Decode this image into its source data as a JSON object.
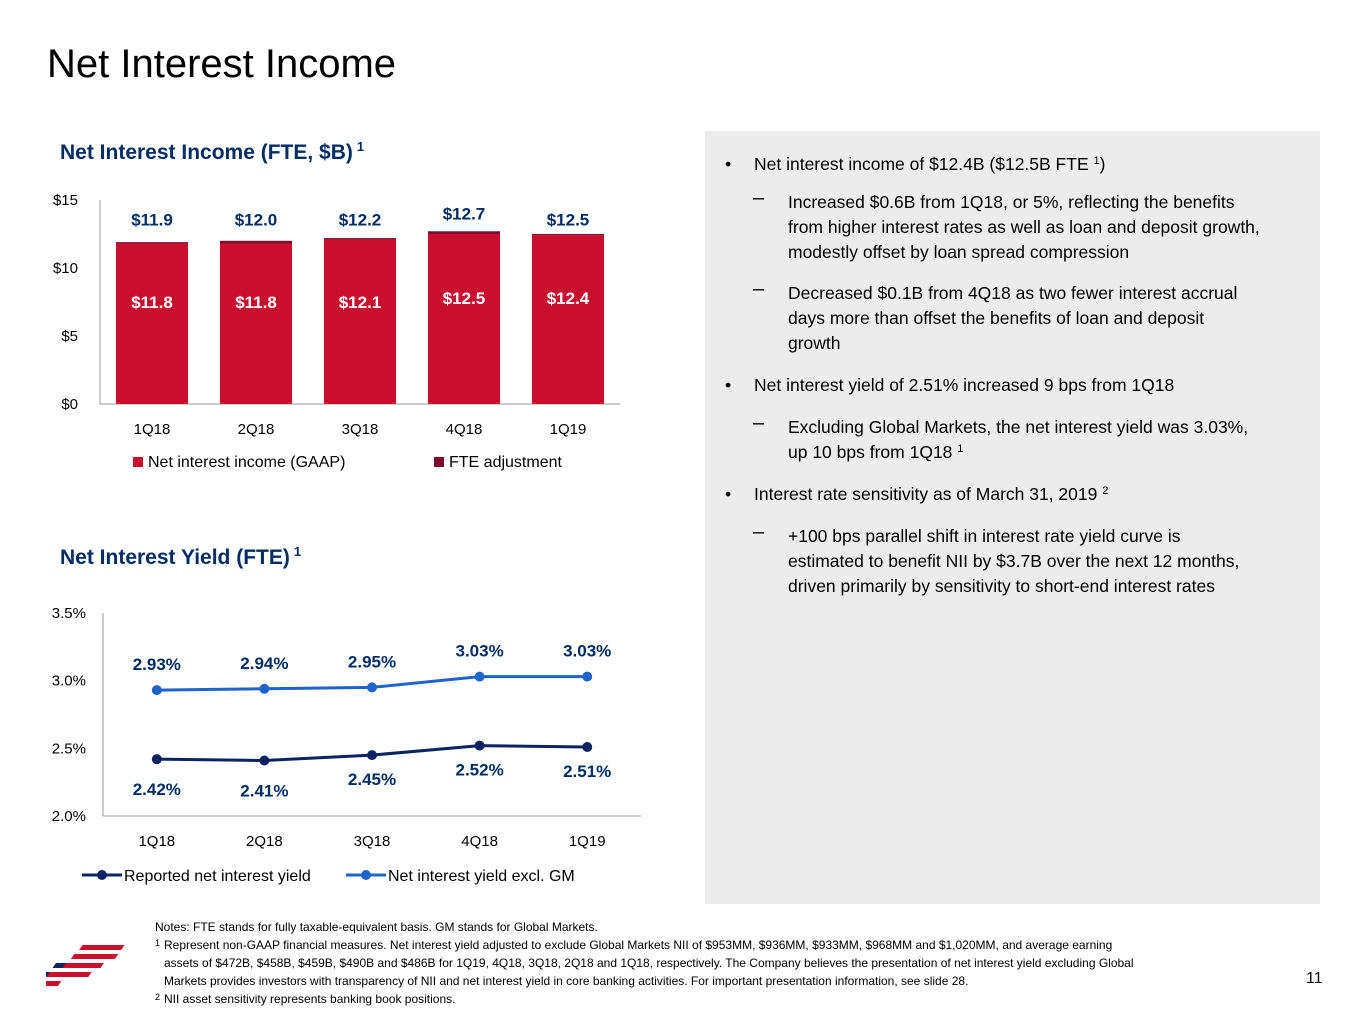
{
  "page": {
    "title": "Net Interest Income",
    "page_number": "11"
  },
  "colors": {
    "bar_red": "#c8102e",
    "fte_dark_red": "#7a0c2e",
    "navy": "#0b2461",
    "blue": "#1f64c8",
    "panel_gray": "#ececec"
  },
  "nii_chart": {
    "title": "Net Interest Income (FTE, $B)",
    "title_sup": "1",
    "legend": [
      "Net interest income (GAAP)",
      "FTE adjustment"
    ]
  },
  "yield_chart": {
    "title": "Net Interest Yield (FTE)",
    "title_sup": "1",
    "legend": [
      "Reported net interest yield",
      "Net interest yield excl. GM"
    ]
  },
  "chart_data": [
    {
      "type": "bar",
      "title": "Net Interest Income (FTE, $B)",
      "categories": [
        "1Q18",
        "2Q18",
        "3Q18",
        "4Q18",
        "1Q19"
      ],
      "y_ticks": [
        "$0",
        "$5",
        "$10",
        "$15"
      ],
      "ylim": [
        0,
        15
      ],
      "stacked": true,
      "series": [
        {
          "name": "Net interest income (GAAP)",
          "values": [
            11.8,
            11.8,
            12.1,
            12.5,
            12.4
          ],
          "labels": [
            "$11.8",
            "$11.8",
            "$12.1",
            "$12.5",
            "$12.4"
          ]
        },
        {
          "name": "FTE adjustment",
          "values": [
            0.1,
            0.2,
            0.1,
            0.2,
            0.1
          ]
        }
      ],
      "total_labels": [
        "$11.9",
        "$12.0",
        "$12.2",
        "$12.7",
        "$12.5"
      ],
      "totals": [
        11.9,
        12.0,
        12.2,
        12.7,
        12.5
      ],
      "legend_position": "bottom"
    },
    {
      "type": "line",
      "title": "Net Interest Yield (FTE)",
      "categories": [
        "1Q18",
        "2Q18",
        "3Q18",
        "4Q18",
        "1Q19"
      ],
      "y_ticks": [
        "2.0%",
        "2.5%",
        "3.0%",
        "3.5%"
      ],
      "ylim": [
        2.0,
        3.5
      ],
      "series": [
        {
          "name": "Reported net interest yield",
          "values": [
            2.42,
            2.41,
            2.45,
            2.52,
            2.51
          ],
          "labels": [
            "2.42%",
            "2.41%",
            "2.45%",
            "2.52%",
            "2.51%"
          ]
        },
        {
          "name": "Net interest yield excl. GM",
          "values": [
            2.93,
            2.94,
            2.95,
            3.03,
            3.03
          ],
          "labels": [
            "2.93%",
            "2.94%",
            "2.95%",
            "3.03%",
            "3.03%"
          ]
        }
      ],
      "legend_position": "bottom"
    }
  ],
  "bullets": [
    {
      "marker": "•",
      "lines": [
        "Net interest income of $12.4B ($12.5B FTE ",
        ")"
      ],
      "sup": "1"
    },
    {
      "marker": "–",
      "lines": [
        "Increased $0.6B from 1Q18, or 5%, reflecting the benefits",
        "from higher interest rates as well as loan and deposit growth,",
        "modestly offset by loan spread compression"
      ]
    },
    {
      "marker": "–",
      "lines": [
        "Decreased $0.1B from 4Q18 as two fewer interest accrual",
        "days more than offset the benefits of loan and deposit",
        "growth"
      ]
    },
    {
      "marker": "•",
      "lines": [
        "Net interest yield of 2.51% increased 9 bps from 1Q18"
      ]
    },
    {
      "marker": "–",
      "lines": [
        "Excluding Global Markets, the net interest yield was 3.03%,",
        "up 10 bps from 1Q18 "
      ],
      "sup": "1"
    },
    {
      "marker": "•",
      "lines": [
        "Interest rate sensitivity as of March 31, 2019 "
      ],
      "sup": "2"
    },
    {
      "marker": "–",
      "lines": [
        "+100 bps parallel shift in interest rate yield curve is",
        "estimated to benefit NII by $3.7B over the next 12 months,",
        "driven primarily by sensitivity to short-end interest rates"
      ]
    }
  ],
  "notes": {
    "line0": "Notes: FTE stands for fully taxable-equivalent basis. GM stands for Global Markets.",
    "n1_sup": "1",
    "n1_a": "Represent non-GAAP financial measures. Net interest yield adjusted to exclude Global Markets NII of $953MM, $936MM, $933MM, $968MM and $1,020MM, and average earning",
    "n1_b": "assets of $472B, $458B, $459B, $490B and $486B for 1Q19, 4Q18, 3Q18, 2Q18 and 1Q18, respectively. The Company believes the presentation of net interest yield excluding Global",
    "n1_c": "Markets provides investors with transparency of NII and net interest yield in core banking activities. For important presentation information, see slide 28.",
    "n2_sup": "2",
    "n2": "NII asset sensitivity represents banking book positions."
  }
}
